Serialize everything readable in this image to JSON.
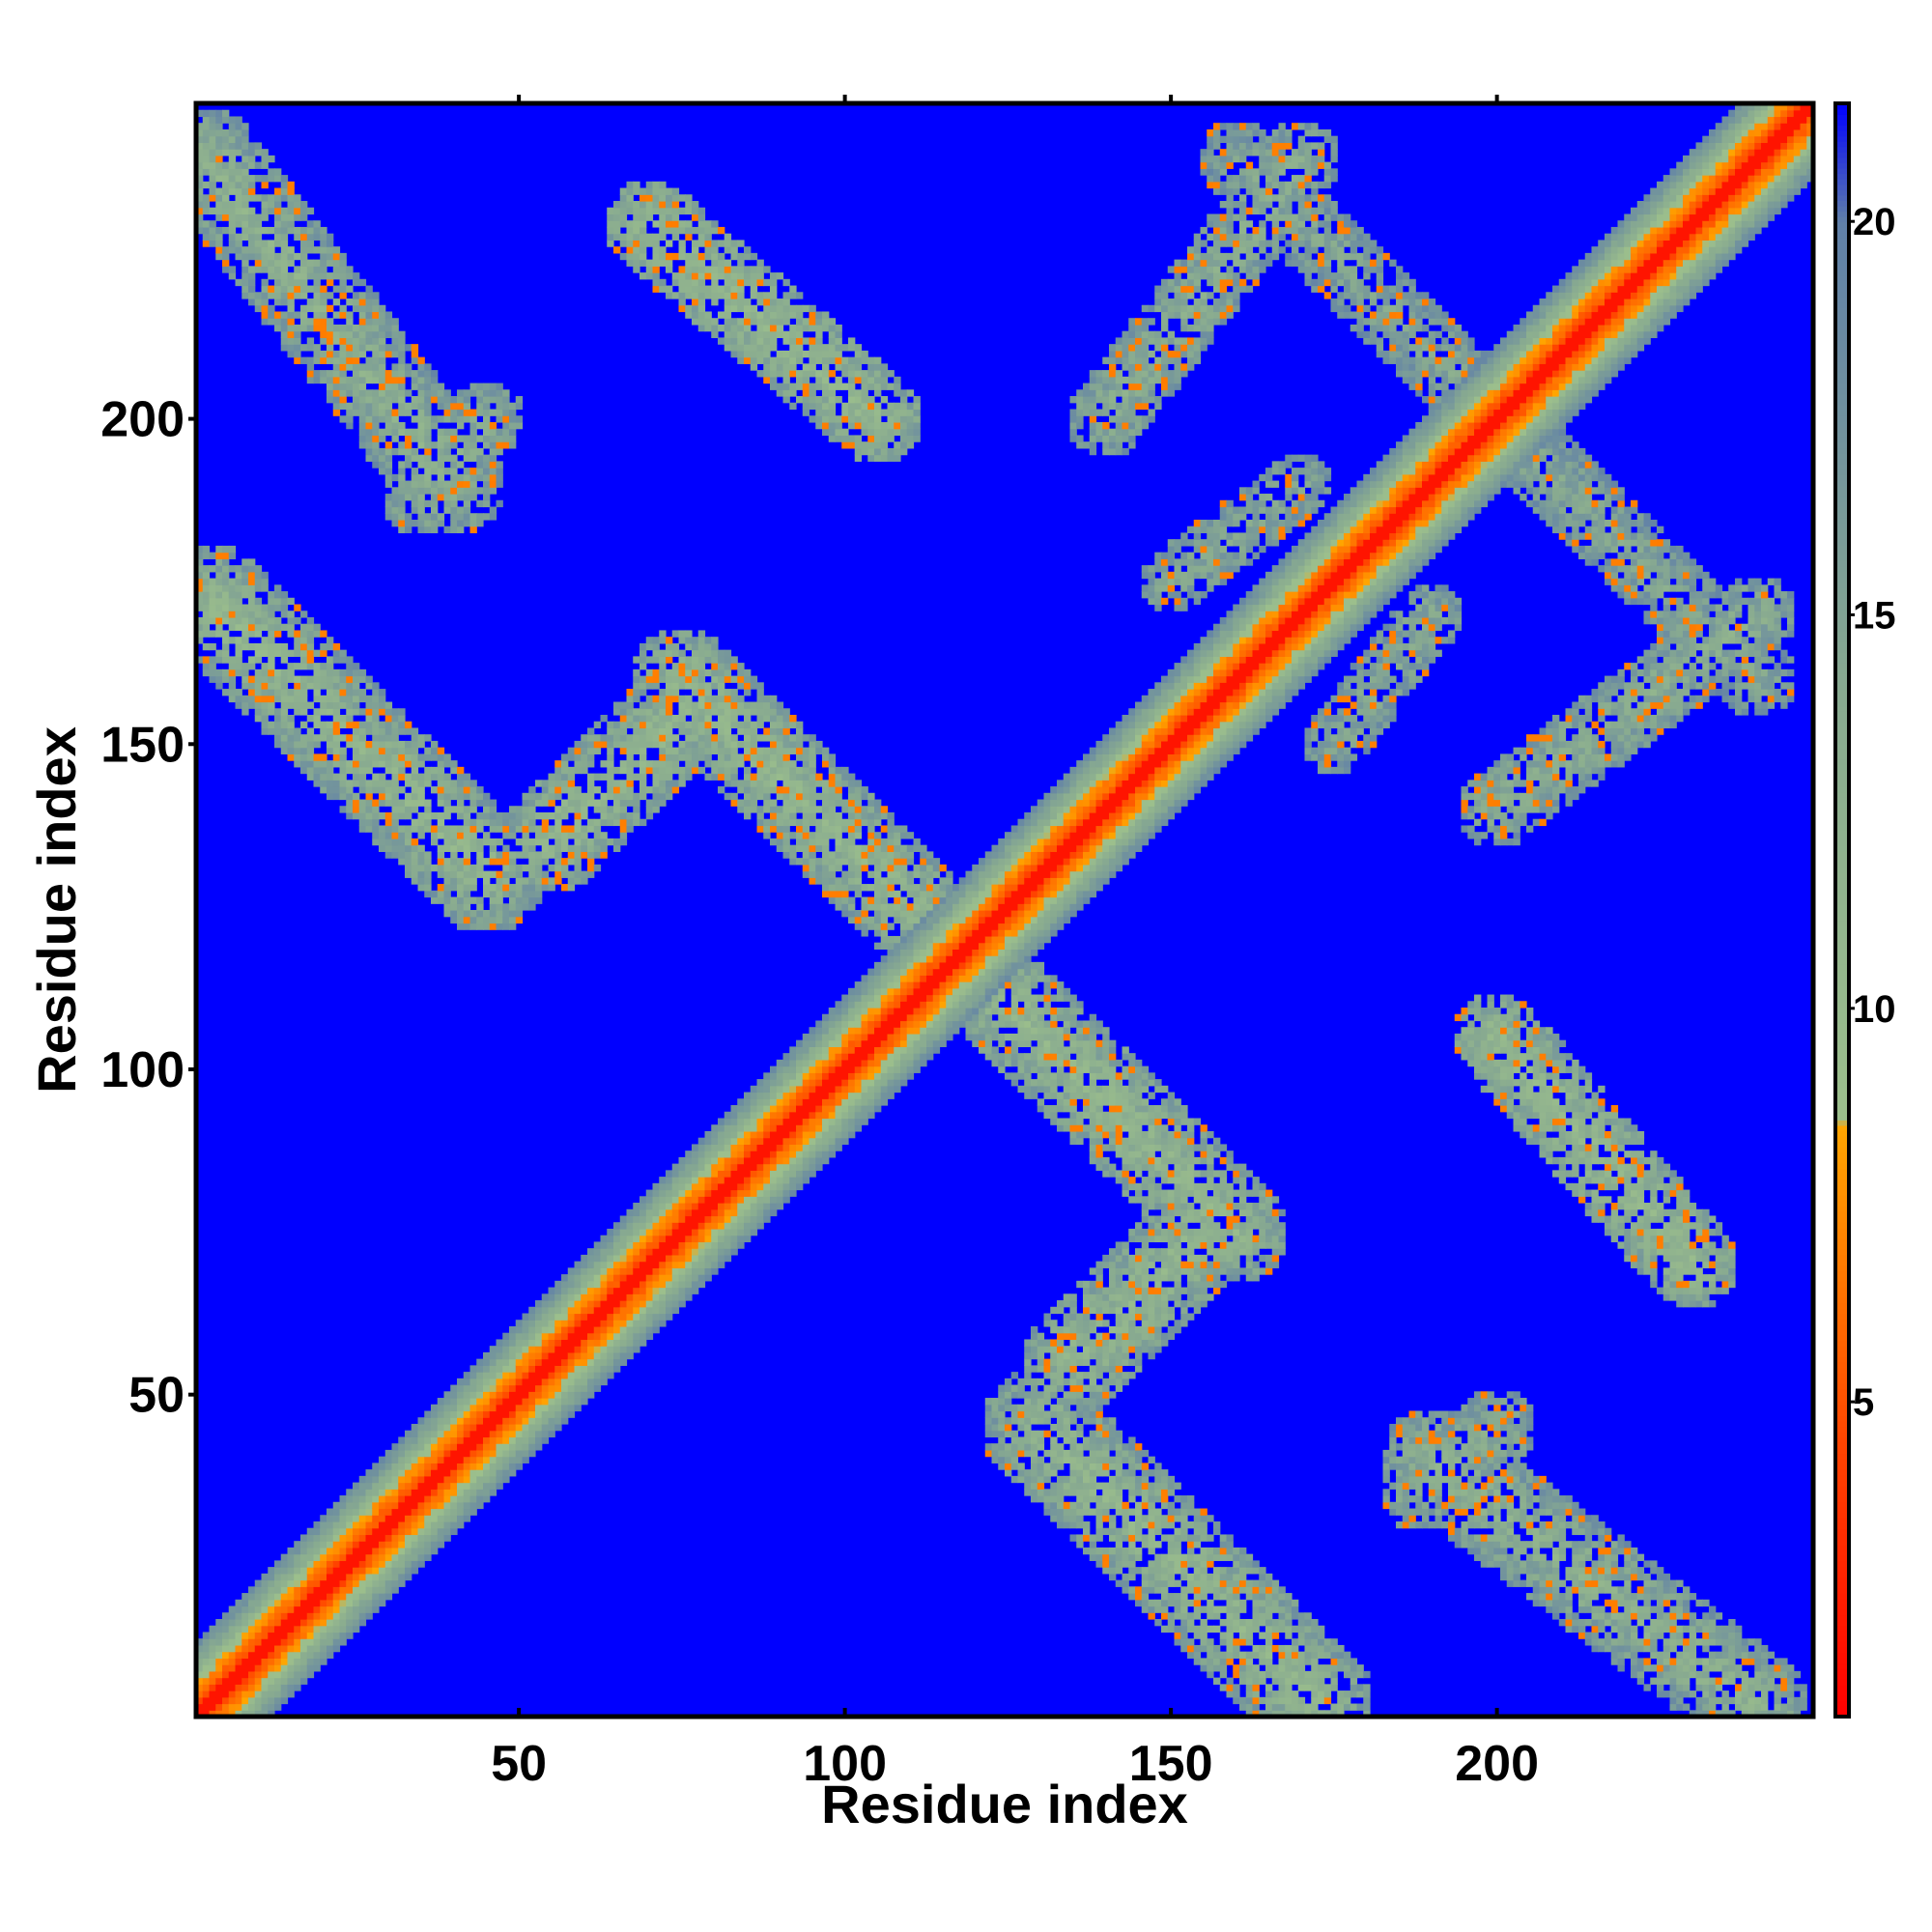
{
  "chart_data": {
    "type": "heatmap",
    "title": "",
    "xlabel": "Residue index",
    "ylabel": "Residue index",
    "xlim": [
      1,
      248
    ],
    "ylim": [
      1,
      248
    ],
    "x_ticks": [
      50,
      100,
      150,
      200
    ],
    "y_ticks": [
      50,
      100,
      150,
      200
    ],
    "colorbar": {
      "range": [
        1,
        21.5
      ],
      "ticks": [
        5,
        10,
        15,
        20
      ],
      "stops": [
        {
          "value": 1,
          "color": "#ff0000"
        },
        {
          "value": 4.5,
          "color": "#ff4500"
        },
        {
          "value": 8.5,
          "color": "#ffa500"
        },
        {
          "value": 8.6,
          "color": "#9cbf8c"
        },
        {
          "value": 14,
          "color": "#88aa90"
        },
        {
          "value": 20,
          "color": "#6080a8"
        },
        {
          "value": 21.5,
          "color": "#0000ff"
        }
      ]
    },
    "background_value": 21.5,
    "symmetric": true,
    "diagonal": {
      "value": 2,
      "halfwidth_low": 6,
      "halfwidth_high": 11
    },
    "contact_bands": [
      {
        "orientation": "anti",
        "start": [
          2,
          240
        ],
        "end": [
          40,
          190
        ],
        "width": 8,
        "value": 12
      },
      {
        "orientation": "anti",
        "start": [
          3,
          172
        ],
        "end": [
          45,
          130
        ],
        "width": 9,
        "value": 11
      },
      {
        "orientation": "parallel",
        "start": [
          35,
          188
        ],
        "end": [
          45,
          200
        ],
        "width": 6,
        "value": 13
      },
      {
        "orientation": "parallel",
        "start": [
          55,
          135
        ],
        "end": [
          75,
          155
        ],
        "width": 8,
        "value": 11
      },
      {
        "orientation": "anti",
        "start": [
          75,
          160
        ],
        "end": [
          110,
          125
        ],
        "width": 8,
        "value": 11
      },
      {
        "orientation": "anti",
        "start": [
          70,
          230
        ],
        "end": [
          105,
          200
        ],
        "width": 7,
        "value": 11
      },
      {
        "orientation": "anti",
        "start": [
          160,
          240
        ],
        "end": [
          200,
          200
        ],
        "width": 6,
        "value": 14
      },
      {
        "orientation": "parallel",
        "start": [
          200,
          140
        ],
        "end": [
          240,
          170
        ],
        "width": 6,
        "value": 13
      },
      {
        "orientation": "parallel",
        "start": [
          150,
          175
        ],
        "end": [
          170,
          190
        ],
        "width": 5,
        "value": 14
      }
    ]
  }
}
